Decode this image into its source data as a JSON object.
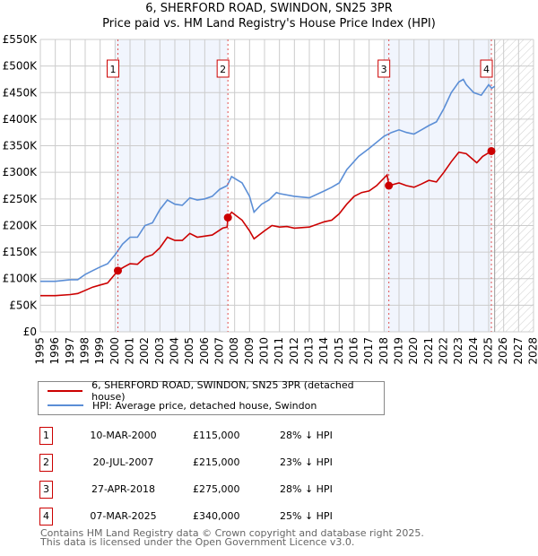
{
  "title_line1": "6, SHERFORD ROAD, SWINDON, SN25 3PR",
  "title_line2": "Price paid vs. HM Land Registry's House Price Index (HPI)",
  "chart_data": {
    "type": "line",
    "title": "6, SHERFORD ROAD, SWINDON, SN25 3PR — Price paid vs. HM Land Registry's House Price Index (HPI)",
    "xlim": [
      1995,
      2028
    ],
    "ylim": [
      0,
      550000
    ],
    "x_ticks": [
      "1995",
      "1996",
      "1997",
      "1998",
      "1999",
      "2000",
      "2001",
      "2002",
      "2003",
      "2004",
      "2005",
      "2006",
      "2007",
      "2008",
      "2009",
      "2010",
      "2011",
      "2012",
      "2013",
      "2014",
      "2015",
      "2016",
      "2017",
      "2018",
      "2019",
      "2020",
      "2021",
      "2022",
      "2023",
      "2024",
      "2025",
      "2026",
      "2027",
      "2028"
    ],
    "y_ticks": [
      {
        "value": 0,
        "label": "£0"
      },
      {
        "value": 50000,
        "label": "£50K"
      },
      {
        "value": 100000,
        "label": "£100K"
      },
      {
        "value": 150000,
        "label": "£150K"
      },
      {
        "value": 200000,
        "label": "£200K"
      },
      {
        "value": 250000,
        "label": "£250K"
      },
      {
        "value": 300000,
        "label": "£300K"
      },
      {
        "value": 350000,
        "label": "£350K"
      },
      {
        "value": 400000,
        "label": "£400K"
      },
      {
        "value": 450000,
        "label": "£450K"
      },
      {
        "value": 500000,
        "label": "£500K"
      },
      {
        "value": 550000,
        "label": "£550K"
      }
    ],
    "grid": true,
    "shaded_periods": [
      [
        2000.0,
        2007.55
      ],
      [
        2018.0,
        2025.2
      ]
    ],
    "future_hatch_from": 2025.4,
    "series": [
      {
        "name": "6, SHERFORD ROAD, SWINDON, SN25 3PR (detached house)",
        "color": "#cc0000",
        "x": [
          1995,
          1996,
          1997,
          1997.5,
          1998,
          1998.5,
          1999,
          1999.5,
          2000.19,
          2000.6,
          2001,
          2001.5,
          2002,
          2002.5,
          2003,
          2003.5,
          2004,
          2004.5,
          2005,
          2005.5,
          2006,
          2006.5,
          2007.2,
          2007.5,
          2007.55,
          2007.8,
          2008.5,
          2009,
          2009.3,
          2010,
          2010.5,
          2011,
          2011.5,
          2012,
          2013,
          2014,
          2014.5,
          2015,
          2015.5,
          2016,
          2016.5,
          2017,
          2017.5,
          2018.2,
          2018.32,
          2019,
          2019.5,
          2020,
          2020.5,
          2021,
          2021.5,
          2022,
          2022.5,
          2023,
          2023.5,
          2024.2,
          2024.6,
          2025.18
        ],
        "y": [
          68000,
          68000,
          70000,
          72000,
          78000,
          84000,
          88000,
          92000,
          115000,
          122000,
          128000,
          127000,
          140000,
          145000,
          158000,
          178000,
          172000,
          172000,
          185000,
          178000,
          180000,
          182000,
          195000,
          197000,
          215000,
          225000,
          210000,
          190000,
          175000,
          190000,
          200000,
          197000,
          198000,
          195000,
          197000,
          207000,
          210000,
          222000,
          240000,
          255000,
          262000,
          265000,
          275000,
          295000,
          275000,
          280000,
          275000,
          272000,
          278000,
          285000,
          282000,
          300000,
          320000,
          338000,
          335000,
          318000,
          330000,
          340000
        ]
      },
      {
        "name": "HPI: Average price, detached house, Swindon",
        "color": "#5b8ed6",
        "x": [
          1995,
          1996,
          1997,
          1997.5,
          1998,
          1998.5,
          1999,
          1999.5,
          2000,
          2000.5,
          2001,
          2001.5,
          2002,
          2002.5,
          2003,
          2003.5,
          2004,
          2004.5,
          2005,
          2005.5,
          2006,
          2006.5,
          2007,
          2007.5,
          2007.8,
          2008.5,
          2009,
          2009.3,
          2009.8,
          2010.3,
          2010.8,
          2011,
          2012,
          2013,
          2014,
          2014.5,
          2015,
          2015.5,
          2016.3,
          2017,
          2018,
          2018.5,
          2019,
          2019.5,
          2020,
          2020.5,
          2021,
          2021.5,
          2022,
          2022.5,
          2023,
          2023.3,
          2023.5,
          2024,
          2024.5,
          2025,
          2025.2,
          2025.4
        ],
        "y": [
          95000,
          95000,
          98000,
          98000,
          108000,
          115000,
          122000,
          128000,
          145000,
          165000,
          178000,
          178000,
          200000,
          205000,
          230000,
          248000,
          240000,
          238000,
          252000,
          248000,
          250000,
          255000,
          268000,
          275000,
          292000,
          280000,
          255000,
          225000,
          240000,
          248000,
          262000,
          260000,
          255000,
          252000,
          265000,
          272000,
          280000,
          305000,
          330000,
          345000,
          368000,
          375000,
          380000,
          375000,
          372000,
          380000,
          388000,
          395000,
          420000,
          450000,
          470000,
          475000,
          465000,
          450000,
          445000,
          465000,
          458000,
          462000
        ]
      }
    ],
    "sales": [
      {
        "label": "1",
        "x": 2000.19,
        "y": 115000
      },
      {
        "label": "2",
        "x": 2007.55,
        "y": 215000
      },
      {
        "label": "3",
        "x": 2018.32,
        "y": 275000
      },
      {
        "label": "4",
        "x": 2025.18,
        "y": 340000
      }
    ]
  },
  "legend": [
    {
      "label": "6, SHERFORD ROAD, SWINDON, SN25 3PR (detached house)",
      "color": "#cc0000"
    },
    {
      "label": "HPI: Average price, detached house, Swindon",
      "color": "#5b8ed6"
    }
  ],
  "transactions": [
    {
      "num": "1",
      "date": "10-MAR-2000",
      "price": "£115,000",
      "pct": "28% ↓ HPI"
    },
    {
      "num": "2",
      "date": "20-JUL-2007",
      "price": "£215,000",
      "pct": "23% ↓ HPI"
    },
    {
      "num": "3",
      "date": "27-APR-2018",
      "price": "£275,000",
      "pct": "28% ↓ HPI"
    },
    {
      "num": "4",
      "date": "07-MAR-2025",
      "price": "£340,000",
      "pct": "25% ↓ HPI"
    }
  ],
  "footer_line1": "Contains HM Land Registry data © Crown copyright and database right 2025.",
  "footer_line2": "This data is licensed under the Open Government Licence v3.0."
}
